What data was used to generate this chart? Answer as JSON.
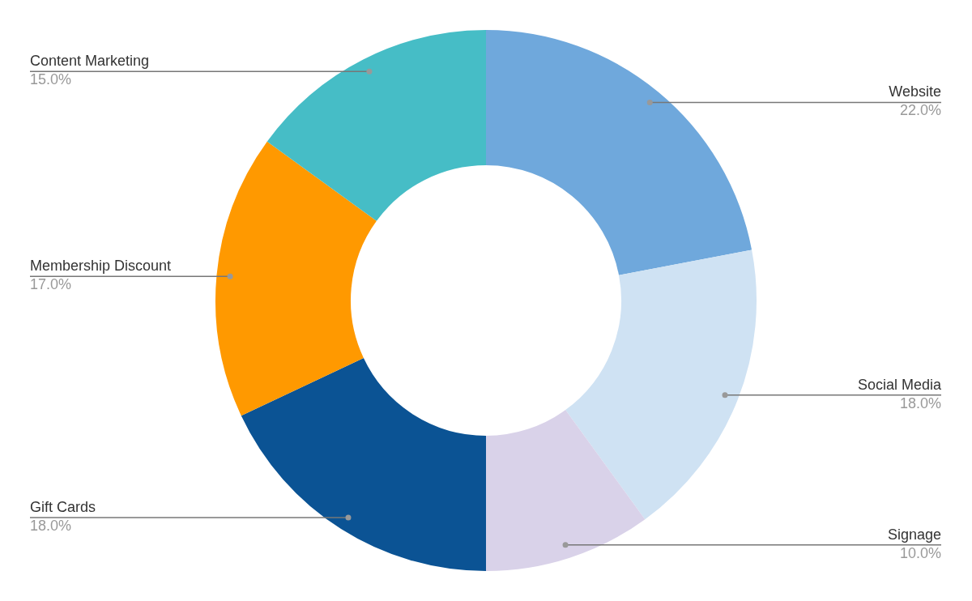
{
  "chart_data": {
    "type": "donut",
    "categories": [
      "Website",
      "Social Media",
      "Signage",
      "Gift Cards",
      "Membership Discount",
      "Content Marketing"
    ],
    "values": [
      22,
      18,
      10,
      18,
      17,
      15
    ],
    "colors": [
      "#6fa8dc",
      "#cfe2f3",
      "#d9d2e9",
      "#0b5394",
      "#ff9900",
      "#46bdc6"
    ],
    "value_labels": [
      "22.0%",
      "18.0%",
      "10.0%",
      "18.0%",
      "17.0%",
      "15.0%"
    ],
    "legend": false
  }
}
